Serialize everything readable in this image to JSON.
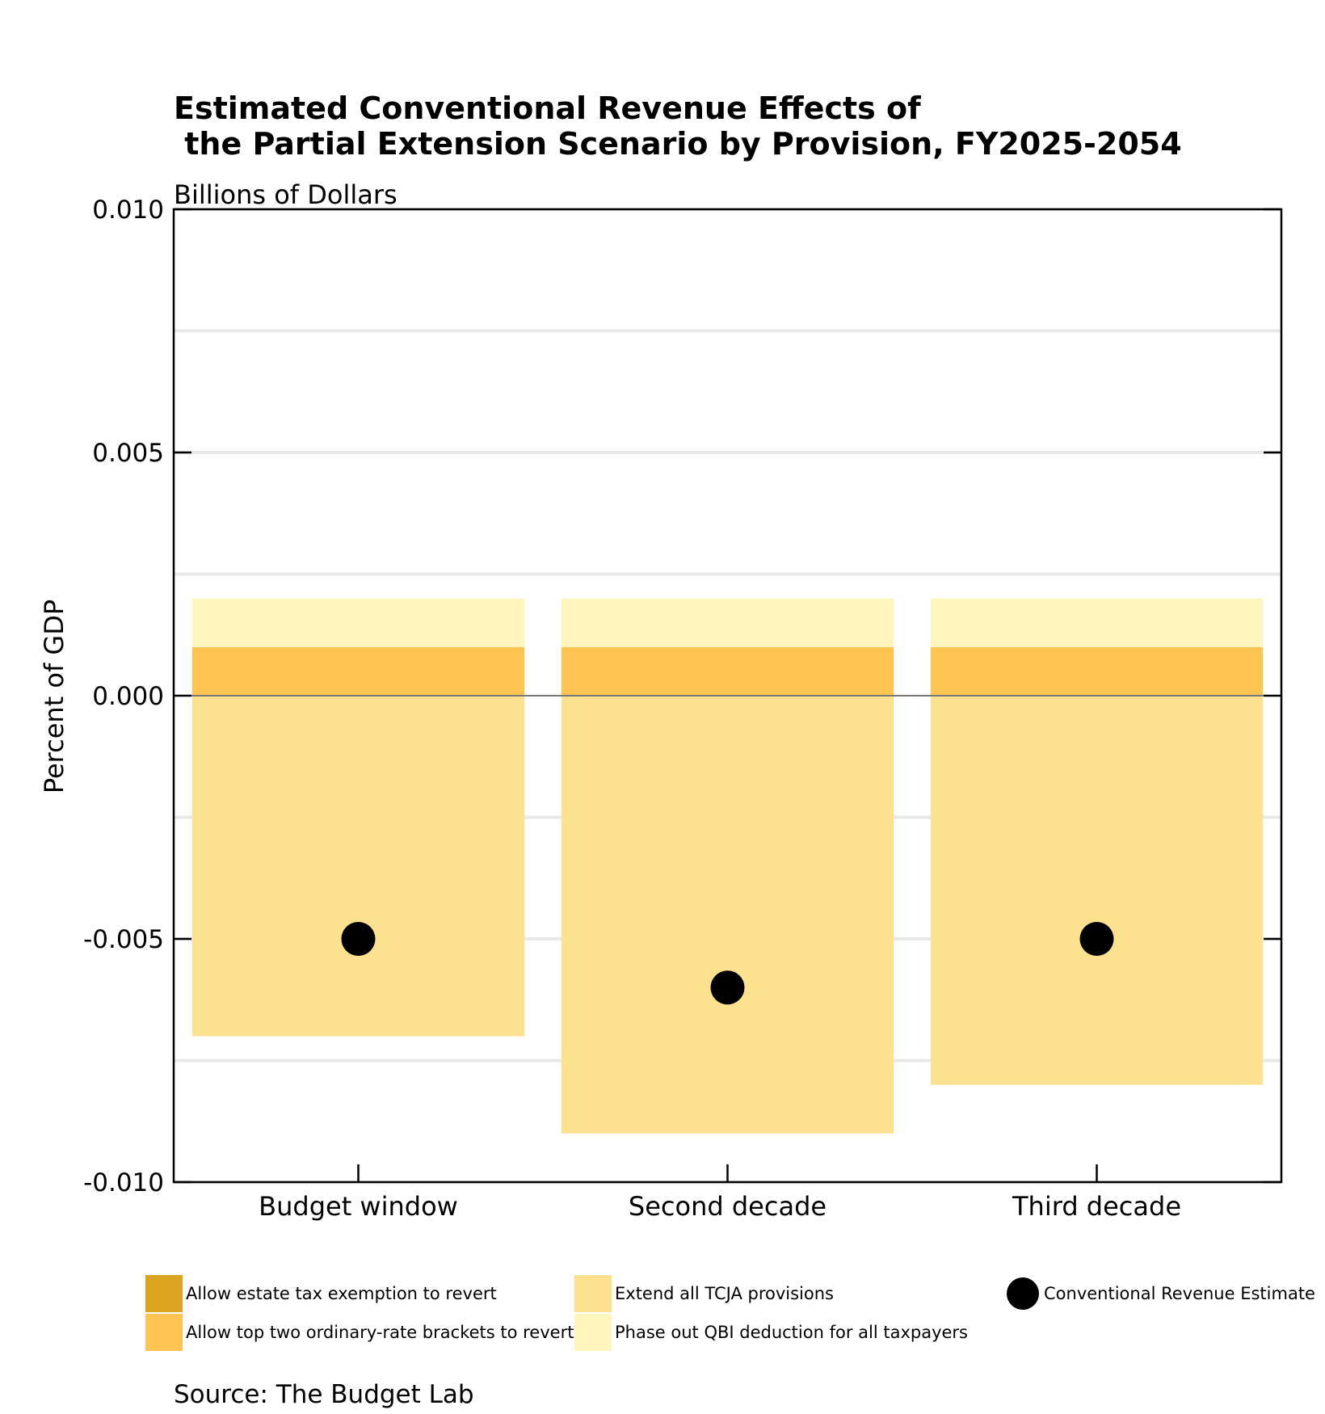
{
  "chart_data": {
    "type": "bar",
    "stacked": true,
    "title": "Estimated Conventional Revenue Effects of\n the Partial Extension Scenario by Provision, FY2025-2054",
    "subtitle": "Billions of Dollars",
    "ylabel": "Percent of GDP",
    "xlabel": "",
    "ylim": [
      -0.01,
      0.01
    ],
    "yticks": [
      "0.010",
      "0.005",
      "0.000",
      "-0.005",
      "-0.010"
    ],
    "ytick_values": [
      0.01,
      0.005,
      0,
      -0.005,
      -0.01
    ],
    "grid": true,
    "legend_position": "bottom",
    "categories": [
      "Budget window",
      "Second decade",
      "Third decade"
    ],
    "series": [
      {
        "name": "Allow estate tax exemption to revert",
        "color": "#D9A521",
        "values": [
          0,
          0,
          0
        ]
      },
      {
        "name": "Allow top two ordinary-rate brackets to revert",
        "color": "#FDC451",
        "values": [
          0.001,
          0.001,
          0.001
        ]
      },
      {
        "name": "Extend all TCJA provisions",
        "color": "#FCE28F",
        "values": [
          -0.007,
          -0.009,
          -0.008
        ]
      },
      {
        "name": "Phase out QBI deduction for all taxpayers",
        "color": "#FEF6BD",
        "values": [
          0.001,
          0.001,
          0.001
        ]
      }
    ],
    "points": {
      "name": "Conventional Revenue Estimate",
      "color": "#000000",
      "values": [
        -0.005,
        -0.006,
        -0.005
      ]
    }
  },
  "source": "Source: The Budget Lab"
}
